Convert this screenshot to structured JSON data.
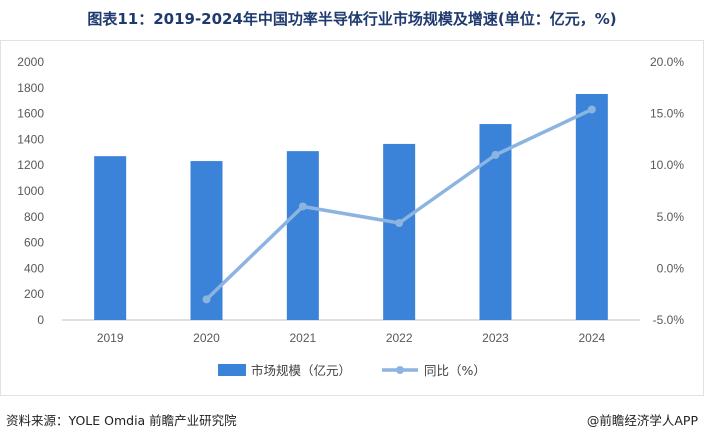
{
  "title": "图表11：2019-2024年中国功率半导体行业市场规模及增速(单位：亿元，%)",
  "source": "资料来源：YOLE Omdia 前瞻产业研究院",
  "credit": "@前瞻经济学人APP",
  "colors": {
    "bar": "#3b82d9",
    "line": "#8cb4e0",
    "title": "#1e3a6e"
  },
  "chart_data": {
    "type": "bar",
    "categories": [
      "2019",
      "2020",
      "2021",
      "2022",
      "2023",
      "2024"
    ],
    "series": [
      {
        "name": "市场规模（亿元）",
        "type": "bar",
        "axis": "left",
        "values": [
          1270,
          1232,
          1309,
          1365,
          1519,
          1752
        ]
      },
      {
        "name": "同比（%）",
        "type": "line",
        "axis": "right",
        "values": [
          null,
          -3.0,
          6.0,
          4.4,
          11.0,
          15.4
        ]
      }
    ],
    "y_left": {
      "ylim": [
        0,
        2000
      ],
      "ticks": [
        "0",
        "200",
        "400",
        "600",
        "800",
        "1000",
        "1200",
        "1400",
        "1600",
        "1800",
        "2000"
      ]
    },
    "y_right": {
      "ylim": [
        -5,
        20
      ],
      "ticks": [
        "-5.0%",
        "0.0%",
        "5.0%",
        "10.0%",
        "15.0%",
        "20.0%"
      ]
    },
    "grid": false,
    "legend_position": "bottom"
  }
}
